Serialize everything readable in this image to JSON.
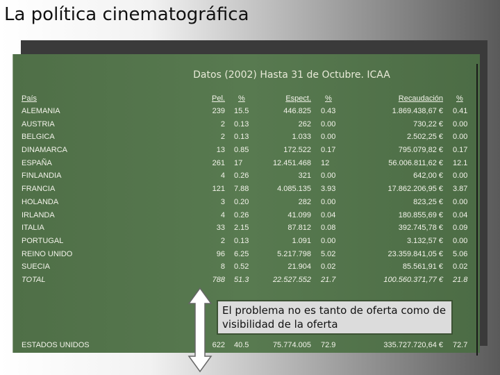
{
  "slide": {
    "title": "La política cinematográfica",
    "subtitle": "Datos (2002) Hasta 31 de Octubre. ICAA",
    "callout": "El problema no es tanto de oferta como de visibilidad de la oferta"
  },
  "table": {
    "headers": [
      "País",
      "Pel.",
      "%",
      "Espect.",
      "%",
      "Recaudación",
      "%"
    ],
    "rows": [
      [
        "ALEMANIA",
        "239",
        "15.5",
        "446.825",
        "0.43",
        "1.869.438,67 €",
        "0.41"
      ],
      [
        "AUSTRIA",
        "2",
        "0.13",
        "262",
        "0.00",
        "730,22 €",
        "0.00"
      ],
      [
        "BELGICA",
        "2",
        "0.13",
        "1.033",
        "0.00",
        "2.502,25 €",
        "0.00"
      ],
      [
        "DINAMARCA",
        "13",
        "0.85",
        "172.522",
        "0.17",
        "795.079,82 €",
        "0.17"
      ],
      [
        "ESPAÑA",
        "261",
        "17",
        "12.451.468",
        "12",
        "56.006.811,62 €",
        "12.1"
      ],
      [
        "FINLANDIA",
        "4",
        "0.26",
        "321",
        "0.00",
        "642,00 €",
        "0.00"
      ],
      [
        "FRANCIA",
        "121",
        "7.88",
        "4.085.135",
        "3.93",
        "17.862.206,95 €",
        "3.87"
      ],
      [
        "HOLANDA",
        "3",
        "0.20",
        "282",
        "0.00",
        "823,25 €",
        "0.00"
      ],
      [
        "IRLANDA",
        "4",
        "0.26",
        "41.099",
        "0.04",
        "180.855,69 €",
        "0.04"
      ],
      [
        "ITALIA",
        "33",
        "2.15",
        "87.812",
        "0.08",
        "392.745,78 €",
        "0.09"
      ],
      [
        "PORTUGAL",
        "2",
        "0.13",
        "1.091",
        "0.00",
        "3.132,57 €",
        "0.00"
      ],
      [
        "REINO UNIDO",
        "96",
        "6.25",
        "5.217.798",
        "5.02",
        "23.359.841,05 €",
        "5.06"
      ],
      [
        "SUECIA",
        "8",
        "0.52",
        "21.904",
        "0.02",
        "85.561,91 €",
        "0.02"
      ]
    ],
    "total": [
      "TOTAL",
      "788",
      "51.3",
      "22.527.552",
      "21.7",
      "100.560.371,77 €",
      "21.8"
    ],
    "usa": [
      "ESTADOS UNIDOS",
      "622",
      "40.5",
      "75.774.005",
      "72.9",
      "335.727.720,64 €",
      "72.7"
    ]
  },
  "icons": {
    "arrow": "double-headed-vertical-arrow-icon"
  }
}
